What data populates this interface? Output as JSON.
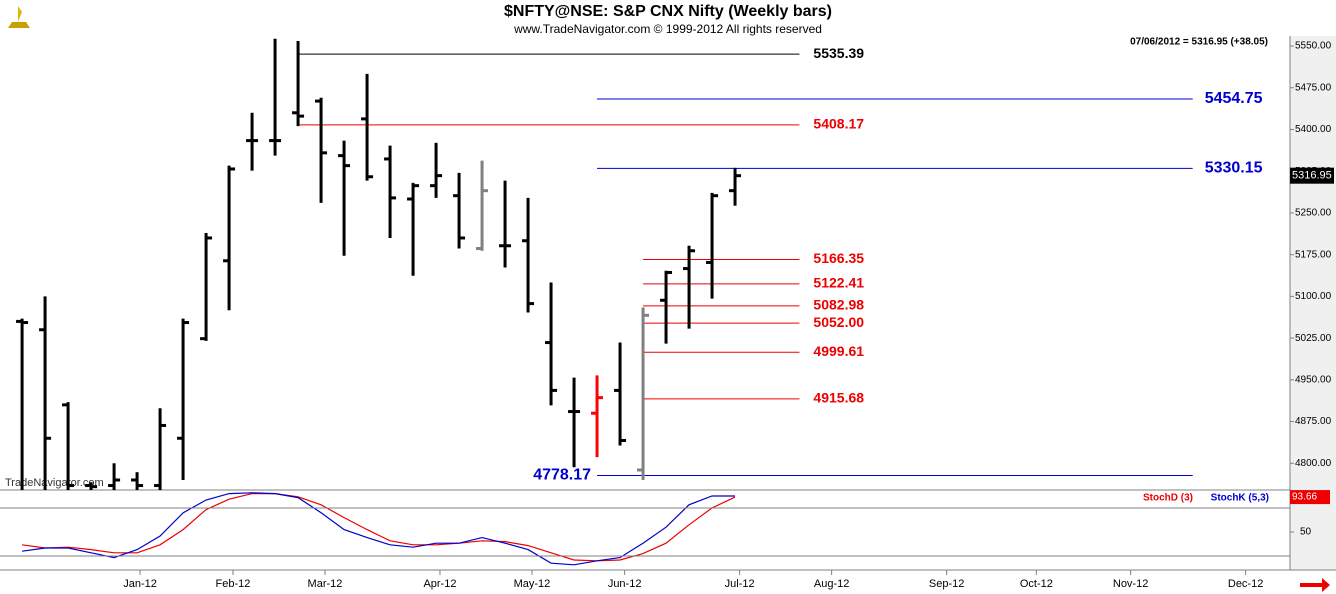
{
  "chart_data": [
    {
      "type": "ohlc",
      "title": "$NFTY@NSE:  S&P CNX Nifty  (Weekly bars)",
      "subtitle": "www.TradeNavigator.com © 1999-2012 All rights reserved",
      "info": "07/06/2012 = 5316.95 (+38.05)",
      "watermark": "TradeNavigator.com",
      "xlim": [
        -0.96,
        55.13
      ],
      "ylim": [
        4752,
        5568
      ],
      "yticks": [
        {
          "value": 4800,
          "label": "4800.00"
        },
        {
          "value": 4875,
          "label": "4875.00"
        },
        {
          "value": 4950,
          "label": "4950.00"
        },
        {
          "value": 5025,
          "label": "5025.00"
        },
        {
          "value": 5100,
          "label": "5100.00"
        },
        {
          "value": 5175,
          "label": "5175.00"
        },
        {
          "value": 5250,
          "label": "5250.00"
        },
        {
          "value": 5325,
          "label": "5325.00"
        },
        {
          "value": 5400,
          "label": "5400.00"
        },
        {
          "value": 5475,
          "label": "5475.00"
        },
        {
          "value": 5550,
          "label": "5550.00"
        }
      ],
      "open": [
        5055,
        5040,
        4905,
        4760,
        4760,
        4770,
        4760,
        4845,
        5024,
        5164,
        5380,
        5380,
        5430,
        5451,
        5353,
        5419,
        5347,
        5275,
        5299,
        5281,
        5186,
        5191,
        5200,
        5017,
        4893,
        4890,
        4931,
        4788,
        5093,
        5150,
        5161,
        5290
      ],
      "high": [
        5060,
        5100,
        4910,
        4766,
        4800,
        4784,
        4899,
        5060,
        5214,
        5335,
        5430,
        5563,
        5559,
        5457,
        5380,
        5500,
        5371,
        5304,
        5376,
        5322,
        5344,
        5308,
        5277,
        5125,
        4954,
        4958,
        5017,
        5080,
        5146,
        5191,
        5286,
        5331
      ],
      "low": [
        4745,
        4750,
        4750,
        4750,
        4750,
        4750,
        4750,
        4770,
        5020,
        5075,
        5326,
        5353,
        5406,
        5268,
        5173,
        5308,
        5205,
        5137,
        5277,
        5186,
        5182,
        5152,
        5071,
        4904,
        4793,
        4811,
        4832,
        4770,
        5015,
        5042,
        5096,
        5263
      ],
      "close": [
        5053,
        4845,
        4760,
        4758,
        4770,
        4760,
        4868,
        5053,
        5205,
        5329,
        5380,
        5380,
        5424,
        5358,
        5335,
        5315,
        5277,
        5299,
        5317,
        5205,
        5290,
        5191,
        5087,
        4931,
        4893,
        4918,
        4841,
        5066,
        5143,
        5182,
        5281,
        5316.95
      ],
      "colors": [
        "#000000",
        "#000000",
        "#000000",
        "#000000",
        "#000000",
        "#000000",
        "#000000",
        "#000000",
        "#000000",
        "#000000",
        "#000000",
        "#000000",
        "#000000",
        "#000000",
        "#000000",
        "#000000",
        "#000000",
        "#000000",
        "#000000",
        "#000000",
        "#808080",
        "#000000",
        "#000000",
        "#000000",
        "#000000",
        "#ff0000",
        "#000000",
        "#808080",
        "#000000",
        "#000000",
        "#000000",
        "#000000"
      ],
      "levels": [
        {
          "value": 5535.39,
          "color": "#000000",
          "from": 12,
          "to": 33.8
        },
        {
          "value": 5454.75,
          "color": "#0000cc",
          "from": 25,
          "to": 50.9
        },
        {
          "value": 5408.17,
          "color": "#ee0000",
          "from": 12,
          "to": 33.8
        },
        {
          "value": 5330.15,
          "color": "#0000cc",
          "from": 25,
          "to": 50.9
        },
        {
          "value": 5166.35,
          "color": "#ee0000",
          "from": 27,
          "to": 33.8
        },
        {
          "value": 5122.41,
          "color": "#ee0000",
          "from": 27,
          "to": 33.8
        },
        {
          "value": 5082.98,
          "color": "#ee0000",
          "from": 27,
          "to": 33.8
        },
        {
          "value": 5052,
          "label": "5052.00",
          "color": "#ee0000",
          "from": 27,
          "to": 33.8
        },
        {
          "value": 4999.61,
          "color": "#ee0000",
          "from": 27,
          "to": 33.8
        },
        {
          "value": 4915.68,
          "color": "#ee0000",
          "from": 27,
          "to": 33.8
        },
        {
          "value": 4778.17,
          "color": "#0000cc",
          "from": 25,
          "to": 50.9,
          "label_side": "left"
        }
      ]
    },
    {
      "type": "line",
      "xlim": [
        -0.96,
        55.13
      ],
      "ylim": [
        0,
        100
      ],
      "yticks": [
        50
      ],
      "reference_lines": [
        20,
        80
      ],
      "xticks": [
        {
          "value": 5.13,
          "label": "Jan-12"
        },
        {
          "value": 9.17,
          "label": "Feb-12"
        },
        {
          "value": 13.17,
          "label": "Mar-12"
        },
        {
          "value": 18.17,
          "label": "Apr-12"
        },
        {
          "value": 22.17,
          "label": "May-12"
        },
        {
          "value": 26.2,
          "label": "Jun-12"
        },
        {
          "value": 31.2,
          "label": "Jul-12"
        },
        {
          "value": 35.2,
          "label": "Aug-12"
        },
        {
          "value": 40.2,
          "label": "Sep-12"
        },
        {
          "value": 44.1,
          "label": "Oct-12"
        },
        {
          "value": 48.2,
          "label": "Nov-12"
        },
        {
          "value": 53.2,
          "label": "Dec-12"
        }
      ],
      "series": [
        {
          "name": "StochD (3)",
          "color": "#ee0000",
          "values": [
            34,
            30,
            31,
            28,
            24,
            24,
            34,
            53,
            78,
            91,
            98,
            98,
            94,
            84,
            68,
            53,
            39,
            34,
            34,
            36,
            39,
            38,
            33,
            24,
            15,
            14,
            15,
            23,
            36,
            59,
            80,
            93.66
          ]
        },
        {
          "name": "StochK (5,3)",
          "color": "#0000cc",
          "values": [
            26,
            30,
            30,
            24,
            18,
            28,
            45,
            74,
            90,
            98,
            99,
            98,
            93,
            74,
            53,
            43,
            34,
            31,
            36,
            36,
            43,
            36,
            28,
            11,
            9,
            14,
            18,
            36,
            56,
            84,
            95,
            95
          ]
        }
      ]
    }
  ]
}
